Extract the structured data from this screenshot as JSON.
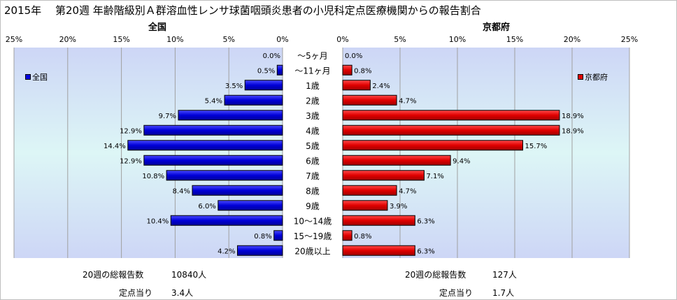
{
  "title": "2015年　 第20週 年齢階級別Ａ群溶血性レンサ球菌咽頭炎患者の小児科定点医療機関からの報告割合",
  "left_panel": {
    "title": "全国",
    "legend": "全国",
    "color": "#0000e0",
    "footer": {
      "total_label": "20週の総報告数",
      "total_value": "10840人",
      "per_label": "定点当り",
      "per_value": "3.4人"
    }
  },
  "right_panel": {
    "title": "京都府",
    "legend": "京都府",
    "color": "#e00000",
    "footer": {
      "total_label": "20週の総報告数",
      "total_value": "127人",
      "per_label": "定点当り",
      "per_value": "1.7人"
    }
  },
  "chart_data": [
    {
      "type": "bar",
      "orientation": "horizontal",
      "direction": "leftward",
      "title": "全国",
      "categories": [
        "～5ヶ月",
        "～11ヶ月",
        "1歳",
        "2歳",
        "3歳",
        "4歳",
        "5歳",
        "6歳",
        "7歳",
        "8歳",
        "9歳",
        "10～14歳",
        "15～19歳",
        "20歳以上"
      ],
      "series": [
        {
          "name": "全国",
          "values": [
            0.0,
            0.5,
            3.5,
            5.4,
            9.7,
            12.9,
            14.4,
            12.9,
            10.8,
            8.4,
            6.0,
            10.4,
            0.8,
            4.2
          ]
        }
      ],
      "data_labels": [
        "0.0%",
        "0.5%",
        "3.5%",
        "5.4%",
        "9.7%",
        "12.9%",
        "14.4%",
        "12.9%",
        "10.8%",
        "8.4%",
        "6.0%",
        "10.4%",
        "0.8%",
        "4.2%"
      ],
      "xlim": [
        0,
        25
      ],
      "ticks": [
        "25%",
        "20%",
        "15%",
        "10%",
        "5%",
        "0%"
      ],
      "grid": true,
      "legend_position": "top-left",
      "color": "#0000e0"
    },
    {
      "type": "bar",
      "orientation": "horizontal",
      "direction": "rightward",
      "title": "京都府",
      "categories": [
        "～5ヶ月",
        "～11ヶ月",
        "1歳",
        "2歳",
        "3歳",
        "4歳",
        "5歳",
        "6歳",
        "7歳",
        "8歳",
        "9歳",
        "10～14歳",
        "15～19歳",
        "20歳以上"
      ],
      "series": [
        {
          "name": "京都府",
          "values": [
            0.0,
            0.8,
            2.4,
            4.7,
            18.9,
            18.9,
            15.7,
            9.4,
            7.1,
            4.7,
            3.9,
            6.3,
            0.8,
            6.3
          ]
        }
      ],
      "data_labels": [
        "0.0%",
        "0.8%",
        "2.4%",
        "4.7%",
        "18.9%",
        "18.9%",
        "15.7%",
        "9.4%",
        "7.1%",
        "4.7%",
        "3.9%",
        "6.3%",
        "0.8%",
        "6.3%"
      ],
      "xlim": [
        0,
        25
      ],
      "ticks": [
        "0%",
        "5%",
        "10%",
        "15%",
        "20%",
        "25%"
      ],
      "grid": true,
      "legend_position": "top-right",
      "color": "#e00000"
    }
  ]
}
